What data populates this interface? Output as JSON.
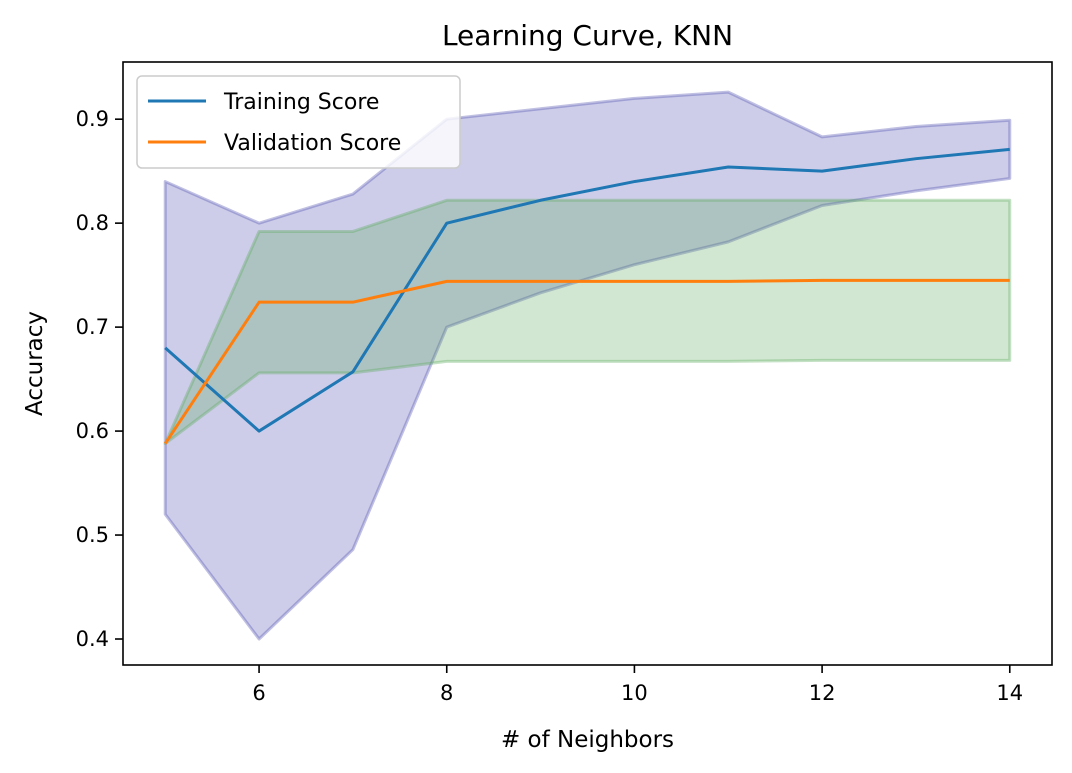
{
  "chart_data": {
    "type": "line",
    "title": "Learning Curve, KNN",
    "xlabel": "# of Neighbors",
    "ylabel": "Accuracy",
    "xlim": [
      4.55,
      14.45
    ],
    "ylim": [
      0.375,
      0.955
    ],
    "x_ticks": [
      6,
      8,
      10,
      12,
      14
    ],
    "y_ticks": [
      0.4,
      0.5,
      0.6,
      0.7,
      0.8,
      0.9
    ],
    "grid": false,
    "legend_position": "top-left",
    "x": [
      5,
      6,
      7,
      8,
      9,
      10,
      11,
      12,
      13,
      14
    ],
    "series": [
      {
        "name": "Training Score",
        "color": "#1f77b4",
        "values": [
          0.68,
          0.6,
          0.657,
          0.8,
          0.822,
          0.84,
          0.854,
          0.85,
          0.862,
          0.871
        ],
        "band_lower": [
          0.52,
          0.4,
          0.486,
          0.7,
          0.733,
          0.76,
          0.782,
          0.817,
          0.831,
          0.843
        ],
        "band_upper": [
          0.84,
          0.8,
          0.828,
          0.9,
          0.91,
          0.92,
          0.926,
          0.883,
          0.893,
          0.899
        ],
        "band_color": "#4b4bb0"
      },
      {
        "name": "Validation Score",
        "color": "#ff7f0e",
        "values": [
          0.588,
          0.724,
          0.724,
          0.744,
          0.744,
          0.744,
          0.744,
          0.745,
          0.745,
          0.745
        ],
        "band_lower": [
          0.588,
          0.656,
          0.656,
          0.667,
          0.667,
          0.667,
          0.667,
          0.668,
          0.668,
          0.668
        ],
        "band_upper": [
          0.588,
          0.792,
          0.792,
          0.822,
          0.822,
          0.822,
          0.822,
          0.822,
          0.822,
          0.822
        ],
        "band_color": "#5aa85a"
      }
    ]
  }
}
